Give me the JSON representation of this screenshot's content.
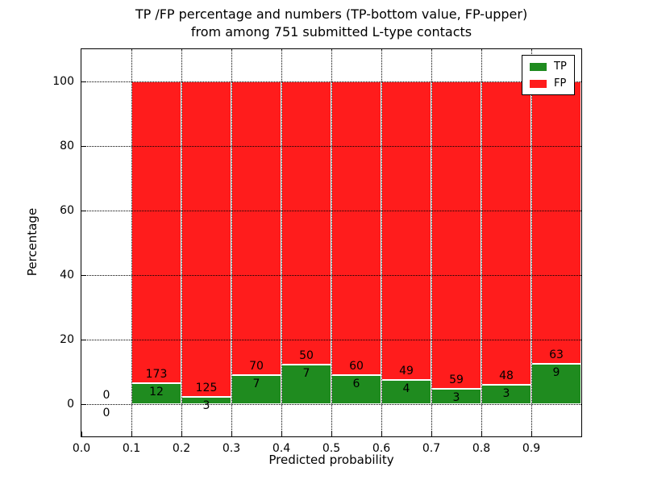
{
  "figure": {
    "title_line1": "TP /FP percentage and numbers (TP-bottom value, FP-upper)",
    "title_line2": "from among 751 submitted L-type contacts",
    "xlabel": "Predicted probability",
    "ylabel": "Percentage"
  },
  "legend": {
    "items": [
      {
        "label": "TP",
        "color": "#1f8b1f"
      },
      {
        "label": "FP",
        "color": "#ff1c1c"
      }
    ]
  },
  "chart_data": {
    "type": "bar",
    "subtype": "stacked-percentage",
    "title": "TP /FP percentage and numbers (TP-bottom value, FP-upper)\nfrom among 751 submitted L-type contacts",
    "xlabel": "Predicted probability",
    "ylabel": "Percentage",
    "xlim": [
      0.0,
      1.0
    ],
    "ylim": [
      -10,
      110
    ],
    "xticks": [
      0.0,
      0.1,
      0.2,
      0.3,
      0.4,
      0.5,
      0.6,
      0.7,
      0.8,
      0.9
    ],
    "xtick_labels": [
      "0.0",
      "0.1",
      "0.2",
      "0.3",
      "0.4",
      "0.5",
      "0.6",
      "0.7",
      "0.8",
      "0.9"
    ],
    "yticks": [
      0,
      20,
      40,
      60,
      80,
      100
    ],
    "ytick_labels": [
      "0",
      "20",
      "40",
      "60",
      "80",
      "100"
    ],
    "grid": true,
    "grid_style": "dotted",
    "legend_position": "upper-right",
    "series": [
      {
        "name": "TP",
        "color": "#1f8b1f",
        "values": [
          0,
          12,
          3,
          7,
          7,
          6,
          4,
          3,
          3,
          9
        ]
      },
      {
        "name": "FP",
        "color": "#ff1c1c",
        "values": [
          0,
          173,
          125,
          70,
          50,
          60,
          49,
          59,
          48,
          63
        ]
      }
    ],
    "bins": [
      {
        "x0": 0.0,
        "x1": 0.1,
        "tp": 0,
        "fp": 0,
        "tp_pct": 0
      },
      {
        "x0": 0.1,
        "x1": 0.2,
        "tp": 12,
        "fp": 173,
        "tp_pct": 6.49
      },
      {
        "x0": 0.2,
        "x1": 0.3,
        "tp": 3,
        "fp": 125,
        "tp_pct": 2.34
      },
      {
        "x0": 0.3,
        "x1": 0.4,
        "tp": 7,
        "fp": 70,
        "tp_pct": 9.09
      },
      {
        "x0": 0.4,
        "x1": 0.5,
        "tp": 7,
        "fp": 50,
        "tp_pct": 12.28
      },
      {
        "x0": 0.5,
        "x1": 0.6,
        "tp": 6,
        "fp": 60,
        "tp_pct": 9.09
      },
      {
        "x0": 0.6,
        "x1": 0.7,
        "tp": 4,
        "fp": 49,
        "tp_pct": 7.55
      },
      {
        "x0": 0.7,
        "x1": 0.8,
        "tp": 3,
        "fp": 59,
        "tp_pct": 4.84
      },
      {
        "x0": 0.8,
        "x1": 0.9,
        "tp": 3,
        "fp": 48,
        "tp_pct": 5.88
      },
      {
        "x0": 0.9,
        "x1": 1.0,
        "tp": 9,
        "fp": 63,
        "tp_pct": 12.5
      }
    ]
  }
}
